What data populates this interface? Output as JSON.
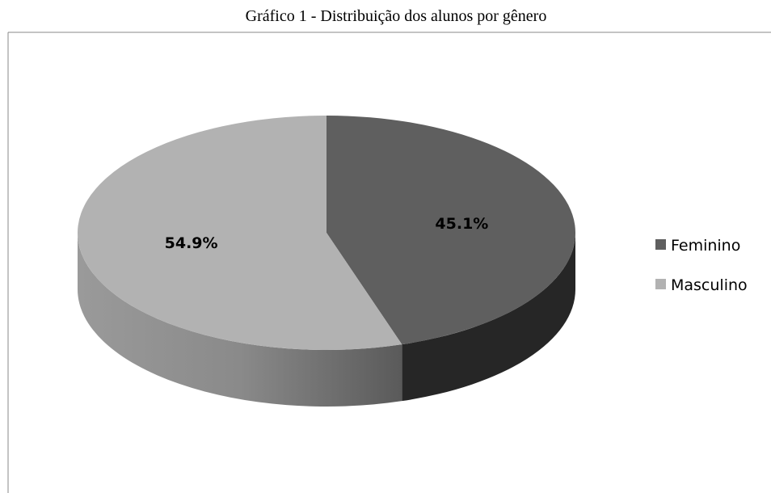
{
  "chart_data": {
    "type": "pie",
    "title": "Gráfico 1 - Distribuição dos alunos por gênero",
    "categories": [
      "Feminino",
      "Masculino"
    ],
    "values": [
      45.1,
      54.9
    ],
    "value_labels": [
      "45.1%",
      "54.9%"
    ],
    "colors": [
      "#5f5f5f",
      "#b2b2b2"
    ],
    "legend": "right"
  }
}
